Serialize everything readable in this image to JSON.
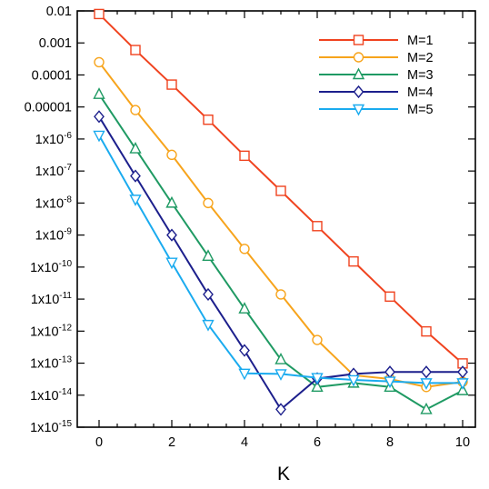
{
  "chart_data": {
    "type": "line",
    "xlabel": "K",
    "ylabel": "",
    "xlim": [
      -0.6,
      10.35
    ],
    "ylim_exponent": [
      -15,
      -2
    ],
    "y_scale": "log",
    "grid": false,
    "legend_position": "top-right",
    "x_ticks": [
      0,
      2,
      4,
      6,
      8,
      10
    ],
    "y_ticks": [
      {
        "exp": -2,
        "label": "0.01"
      },
      {
        "exp": -3,
        "label": "0.001"
      },
      {
        "exp": -4,
        "label": "0.0001"
      },
      {
        "exp": -5,
        "label": "0.00001"
      },
      {
        "exp": -6,
        "label": "1x10",
        "sup": "-6"
      },
      {
        "exp": -7,
        "label": "1x10",
        "sup": "-7"
      },
      {
        "exp": -8,
        "label": "1x10",
        "sup": "-8"
      },
      {
        "exp": -9,
        "label": "1x10",
        "sup": "-9"
      },
      {
        "exp": -10,
        "label": "1x10",
        "sup": "-10"
      },
      {
        "exp": -11,
        "label": "1x10",
        "sup": "-11"
      },
      {
        "exp": -12,
        "label": "1x10",
        "sup": "-12"
      },
      {
        "exp": -13,
        "label": "1x10",
        "sup": "-13"
      },
      {
        "exp": -14,
        "label": "1x10",
        "sup": "-14"
      },
      {
        "exp": -15,
        "label": "1x10",
        "sup": "-15"
      }
    ],
    "x": [
      0,
      1,
      2,
      3,
      4,
      5,
      6,
      7,
      8,
      9,
      10
    ],
    "series": [
      {
        "name": "M=1",
        "color": "#f0431f",
        "marker": "square",
        "values": [
          0.008,
          0.0006,
          5e-05,
          4e-06,
          3e-07,
          2.4e-08,
          1.9e-09,
          1.5e-10,
          1.2e-11,
          9.8e-13,
          9.8e-14
        ]
      },
      {
        "name": "M=2",
        "color": "#f7a41c",
        "marker": "circle",
        "values": [
          0.00025,
          8e-06,
          3.2e-07,
          1e-08,
          3.7e-10,
          1.4e-11,
          5.3e-13,
          4.2e-14,
          3.2e-14,
          1.8e-14,
          2.6e-14
        ]
      },
      {
        "name": "M=3",
        "color": "#1f9a63",
        "marker": "triangle-up",
        "values": [
          2.5e-05,
          5e-07,
          1e-08,
          2.2e-10,
          5e-12,
          1.3e-13,
          1.8e-14,
          2.4e-14,
          1.8e-14,
          3.6e-15,
          1.4e-14
        ]
      },
      {
        "name": "M=4",
        "color": "#1c1f8c",
        "marker": "diamond",
        "values": [
          5e-06,
          7e-08,
          1e-09,
          1.4e-11,
          2.5e-13,
          3.6e-15,
          3.3e-14,
          4.6e-14,
          5.3e-14,
          5.3e-14,
          5.3e-14
        ]
      },
      {
        "name": "M=5",
        "color": "#1aabef",
        "marker": "triangle-down",
        "values": [
          1.3e-06,
          1.3e-08,
          1.4e-10,
          1.6e-12,
          4.8e-14,
          4.6e-14,
          3.5e-14,
          3e-14,
          2.7e-14,
          2.4e-14,
          2.4e-14
        ]
      }
    ]
  }
}
